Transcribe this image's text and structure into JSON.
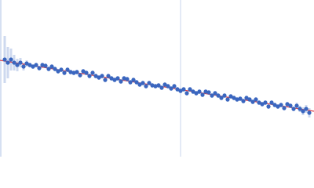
{
  "chart_data": {
    "type": "scatter",
    "xlim": [
      0,
      400
    ],
    "ylim": [
      0,
      200
    ],
    "vlines": [
      230
    ],
    "series": [
      {
        "color": "#3a66bf",
        "error_color": "#b9c9e8",
        "x": [
          6,
          10,
          14,
          18,
          22,
          26,
          30,
          34,
          38,
          42,
          46,
          50,
          54,
          58,
          62,
          66,
          70,
          74,
          78,
          82,
          86,
          90,
          94,
          98,
          102,
          106,
          110,
          114,
          118,
          122,
          126,
          130,
          134,
          138,
          142,
          146,
          150,
          154,
          158,
          162,
          166,
          170,
          174,
          178,
          182,
          186,
          190,
          194,
          198,
          202,
          206,
          210,
          214,
          218,
          222,
          226,
          230,
          234,
          238,
          242,
          246,
          250,
          254,
          258,
          262,
          266,
          270,
          274,
          278,
          282,
          286,
          290,
          294,
          298,
          302,
          306,
          310,
          314,
          318,
          322,
          326,
          330,
          334,
          338,
          342,
          346,
          350,
          354,
          358,
          362,
          366,
          370,
          374,
          378,
          382,
          386,
          390,
          394
        ],
        "values": [
          124,
          120,
          124,
          120,
          117,
          120,
          115,
          119,
          117,
          115,
          117,
          113,
          117,
          116,
          112,
          115,
          112,
          109,
          111,
          107,
          111,
          108,
          107,
          108,
          104,
          109,
          107,
          103,
          107,
          103,
          101,
          103,
          98,
          103,
          100,
          98,
          100,
          96,
          100,
          99,
          95,
          98,
          95,
          92,
          94,
          90,
          94,
          91,
          90,
          91,
          88,
          92,
          90,
          87,
          90,
          86,
          84,
          86,
          81,
          86,
          83,
          81,
          83,
          79,
          83,
          82,
          78,
          81,
          78,
          75,
          78,
          73,
          77,
          75,
          73,
          74,
          71,
          75,
          73,
          70,
          73,
          69,
          67,
          69,
          64,
          69,
          66,
          64,
          66,
          62,
          67,
          65,
          61,
          65,
          61,
          58,
          61,
          56
        ],
        "errors": [
          30,
          20,
          14,
          10,
          8,
          6,
          5,
          4,
          3,
          3,
          3,
          3,
          3,
          3,
          3,
          3,
          3,
          3,
          3,
          3,
          3,
          3,
          3,
          3,
          3,
          3,
          3,
          3,
          3,
          3,
          3,
          3,
          3,
          3,
          3,
          3,
          3,
          3,
          3,
          3,
          3,
          3,
          3,
          3,
          3,
          3,
          3,
          3,
          3,
          3,
          3,
          3,
          3,
          3,
          3,
          3,
          3,
          3,
          3,
          3,
          3,
          3,
          3,
          3,
          3,
          3,
          3,
          3,
          3,
          3,
          3,
          3,
          3,
          3,
          3,
          3,
          3,
          3,
          3,
          3,
          3,
          3,
          3,
          3,
          3,
          3,
          3,
          3,
          3,
          3,
          3,
          3,
          3,
          4,
          4,
          5,
          5,
          6
        ]
      }
    ],
    "fit": {
      "color": "#d9434b",
      "x": [
        0,
        400
      ],
      "values": [
        123,
        58
      ]
    }
  }
}
